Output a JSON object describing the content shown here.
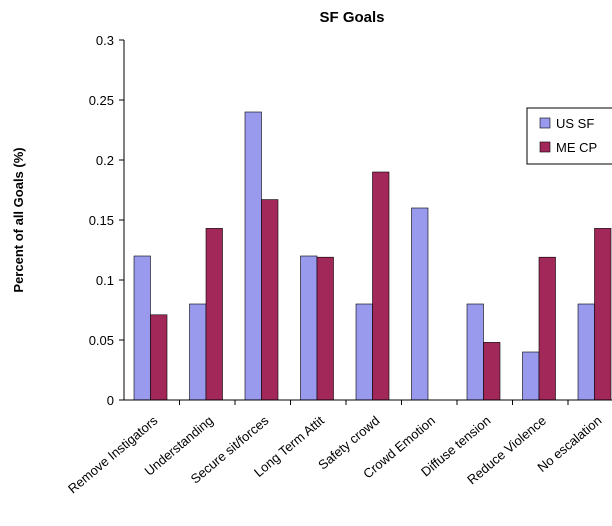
{
  "chart_data": {
    "type": "bar",
    "title": "SF Goals",
    "xlabel": "",
    "ylabel": "Percent of all Goals  (%)",
    "ylim": [
      0,
      0.3
    ],
    "yticks": [
      "0",
      "0.05",
      "0.1",
      "0.15",
      "0.2",
      "0.25",
      "0.3"
    ],
    "categories": [
      "Remove Instigators",
      "Understanding",
      "Secure sit/forces",
      "Long Term Attit",
      "Safety crowd",
      "Crowd Emotion",
      "Diffuse tension",
      "Reduce Violence",
      "No escalation"
    ],
    "series": [
      {
        "name": "US SF",
        "color": "#9999ee",
        "values": [
          0.12,
          0.08,
          0.24,
          0.12,
          0.08,
          0.16,
          0.08,
          0.04,
          0.08
        ]
      },
      {
        "name": "ME CP",
        "color": "#a3285a",
        "values": [
          0.071,
          0.143,
          0.167,
          0.119,
          0.19,
          0,
          0.048,
          0.119,
          0.143
        ]
      }
    ],
    "legend": "right",
    "grid": false
  }
}
